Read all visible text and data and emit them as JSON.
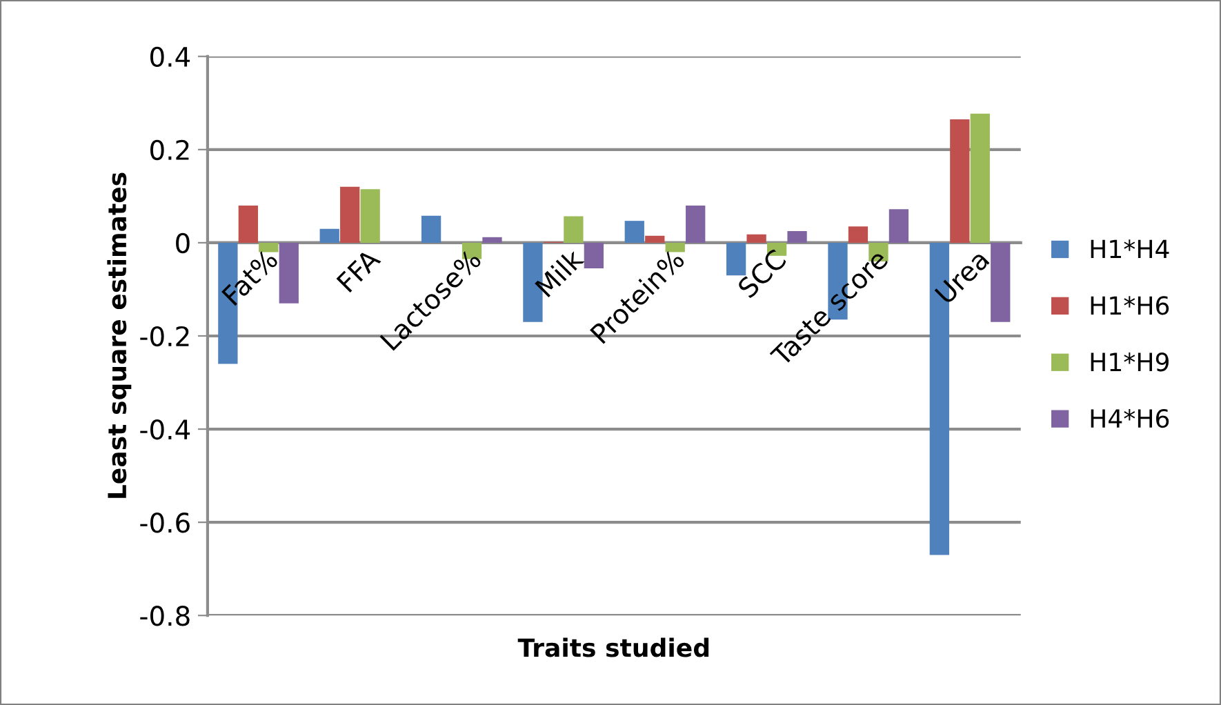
{
  "chart_data": {
    "type": "bar",
    "xlabel": "Traits studied",
    "ylabel": "Least square estimates",
    "categories": [
      "Fat%",
      "FFA",
      "Lactose%",
      "Milk",
      "Protein%",
      "SCC",
      "Taste score",
      "Urea"
    ],
    "series": [
      {
        "name": "H1*H4",
        "color": "#4f81bd",
        "values": [
          -0.26,
          0.03,
          0.058,
          -0.17,
          0.047,
          -0.07,
          -0.165,
          -0.67
        ]
      },
      {
        "name": "H1*H6",
        "color": "#c0504d",
        "values": [
          0.08,
          0.12,
          0,
          0.002,
          0.015,
          0.018,
          0.035,
          0.265
        ]
      },
      {
        "name": "H1*H9",
        "color": "#9bbb59",
        "values": [
          -0.02,
          0.115,
          -0.035,
          0.057,
          -0.02,
          -0.028,
          -0.04,
          0.277
        ]
      },
      {
        "name": "H4*H6",
        "color": "#8064a2",
        "values": [
          -0.13,
          0,
          0.012,
          -0.055,
          0.08,
          0.025,
          0.072,
          -0.17
        ]
      }
    ],
    "ylim": [
      -0.8,
      0.4
    ],
    "yticks": [
      {
        "value": -0.8,
        "label": "-0.8"
      },
      {
        "value": -0.6,
        "label": "-0.6"
      },
      {
        "value": -0.4,
        "label": "-0.4"
      },
      {
        "value": -0.2,
        "label": "-0.2"
      },
      0,
      0.2,
      0.4
    ],
    "grid": "y",
    "legend": "right"
  }
}
